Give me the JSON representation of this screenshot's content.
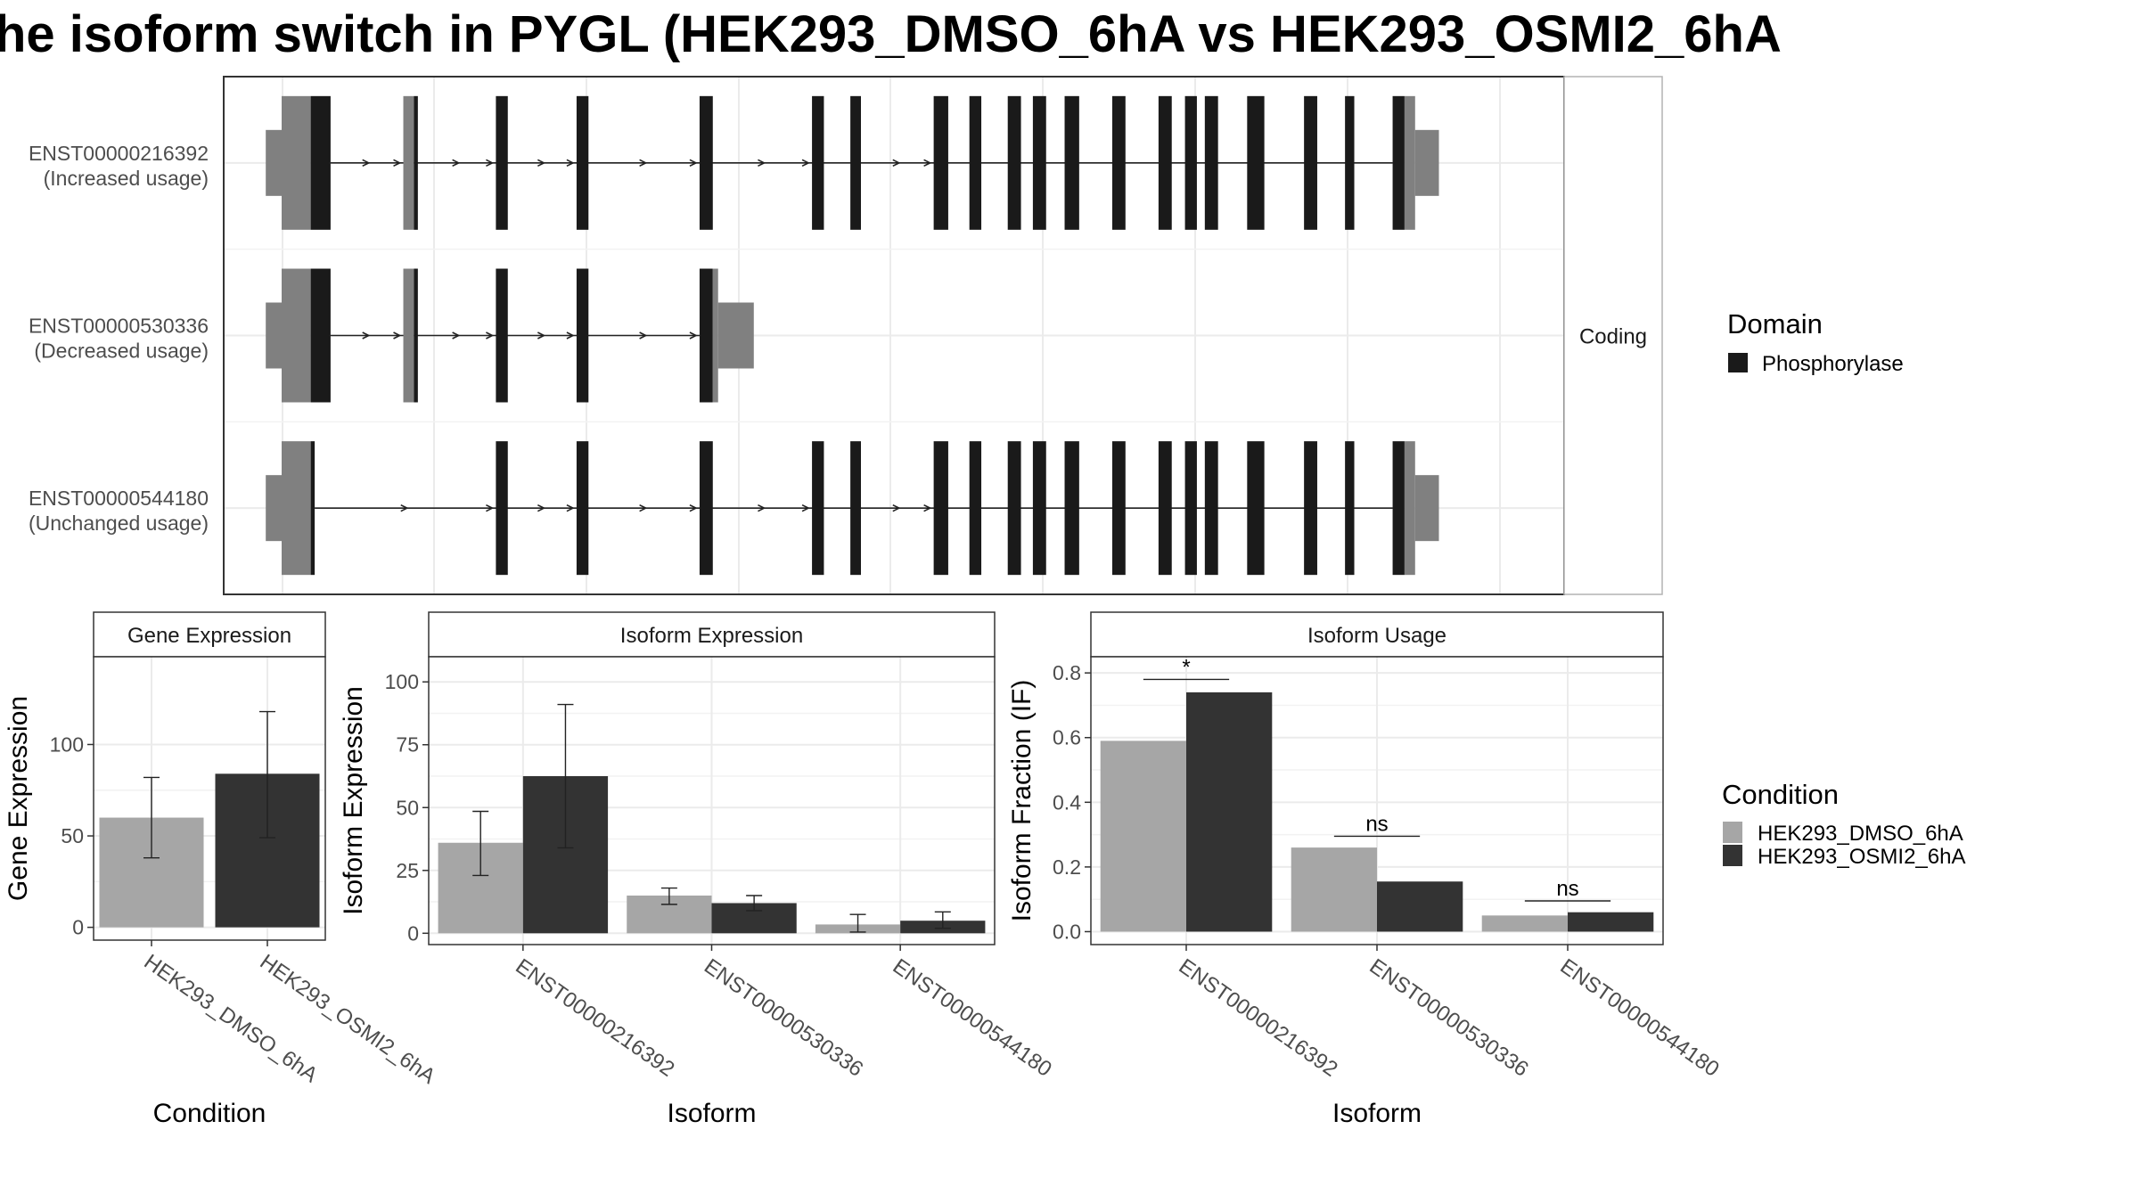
{
  "title": "he isoform switch in PYGL (HEK293_DMSO_6hA vs HEK293_OSMI2_6hA",
  "colors": {
    "dmso": "#a6a6a6",
    "osmi2": "#333333",
    "utr": "#808080",
    "domain": "#1a1a1a"
  },
  "structure": {
    "facet_label": "Coding",
    "transcripts": [
      {
        "id": "ENST00000216392",
        "usage": "(Increased usage)",
        "utr5": [
          [
            0.0,
            0.022
          ],
          [
            0.092,
            0.1
          ]
        ],
        "cds": [
          [
            0.022,
            0.037
          ],
          [
            0.1,
            0.103
          ],
          [
            0.162,
            0.171
          ],
          [
            0.223,
            0.232
          ],
          [
            0.316,
            0.326
          ],
          [
            0.401,
            0.41
          ],
          [
            0.43,
            0.438
          ],
          [
            0.493,
            0.504
          ],
          [
            0.52,
            0.529
          ],
          [
            0.549,
            0.559
          ],
          [
            0.568,
            0.578
          ],
          [
            0.592,
            0.603
          ],
          [
            0.628,
            0.638
          ],
          [
            0.663,
            0.673
          ],
          [
            0.683,
            0.692
          ],
          [
            0.698,
            0.708
          ],
          [
            0.73,
            0.743
          ],
          [
            0.773,
            0.783
          ],
          [
            0.804,
            0.811
          ],
          [
            0.84,
            0.849
          ]
        ],
        "utr3": [
          [
            0.849,
            0.857
          ]
        ],
        "utr3_tail": [
          0.857,
          0.875
        ],
        "intron": [
          0.037,
          0.84
        ]
      },
      {
        "id": "ENST00000530336",
        "usage": "(Decreased usage)",
        "utr5": [
          [
            0.0,
            0.022
          ],
          [
            0.092,
            0.1
          ]
        ],
        "cds": [
          [
            0.022,
            0.037
          ],
          [
            0.1,
            0.103
          ],
          [
            0.162,
            0.171
          ],
          [
            0.223,
            0.232
          ],
          [
            0.316,
            0.326
          ]
        ],
        "utr3": [
          [
            0.326,
            0.33
          ]
        ],
        "utr3_tail": [
          0.33,
          0.357
        ],
        "intron": [
          0.037,
          0.316
        ]
      },
      {
        "id": "ENST00000544180",
        "usage": "(Unchanged usage)",
        "utr5": [
          [
            0.0,
            0.022
          ]
        ],
        "cds": [
          [
            0.022,
            0.025
          ],
          [
            0.162,
            0.171
          ],
          [
            0.223,
            0.232
          ],
          [
            0.316,
            0.326
          ],
          [
            0.401,
            0.41
          ],
          [
            0.43,
            0.438
          ],
          [
            0.493,
            0.504
          ],
          [
            0.52,
            0.529
          ],
          [
            0.549,
            0.559
          ],
          [
            0.568,
            0.578
          ],
          [
            0.592,
            0.603
          ],
          [
            0.628,
            0.638
          ],
          [
            0.663,
            0.673
          ],
          [
            0.683,
            0.692
          ],
          [
            0.698,
            0.708
          ],
          [
            0.73,
            0.743
          ],
          [
            0.773,
            0.783
          ],
          [
            0.804,
            0.811
          ],
          [
            0.84,
            0.849
          ]
        ],
        "utr3": [
          [
            0.849,
            0.857
          ]
        ],
        "utr3_tail": [
          0.857,
          0.875
        ],
        "intron": [
          0.025,
          0.84
        ]
      }
    ]
  },
  "legend_domain": {
    "title": "Domain",
    "items": [
      "Phosphorylase"
    ]
  },
  "legend_condition": {
    "title": "Condition",
    "items": [
      "HEK293_DMSO_6hA",
      "HEK293_OSMI2_6hA"
    ]
  },
  "chart_data": [
    {
      "type": "bar",
      "title": "Gene Expression",
      "xlabel": "Condition",
      "ylabel": "Gene Expression",
      "categories": [
        "HEK293_DMSO_6hA",
        "HEK293_OSMI2_6hA"
      ],
      "values": [
        60,
        84
      ],
      "errors": [
        [
          38,
          82
        ],
        [
          49,
          118
        ]
      ],
      "ylim": [
        -7,
        148
      ],
      "yticks": [
        0,
        50,
        100
      ],
      "grid": true
    },
    {
      "type": "bar",
      "title": "Isoform Expression",
      "xlabel": "Isoform",
      "ylabel": "Isoform Expression",
      "categories": [
        "ENST00000216392",
        "ENST00000530336",
        "ENST00000544180"
      ],
      "series": [
        {
          "name": "HEK293_DMSO_6hA",
          "values": [
            36,
            15,
            3.5
          ],
          "errors": [
            [
              23,
              48.5
            ],
            [
              11.5,
              18
            ],
            [
              0.5,
              7.5
            ]
          ]
        },
        {
          "name": "HEK293_OSMI2_6hA",
          "values": [
            62.5,
            12,
            5
          ],
          "errors": [
            [
              34,
              91
            ],
            [
              9,
              15
            ],
            [
              2,
              8.5
            ]
          ]
        }
      ],
      "ylim": [
        -4.5,
        110
      ],
      "yticks": [
        0,
        25,
        50,
        75,
        100
      ],
      "grid": true
    },
    {
      "type": "bar",
      "title": "Isoform Usage",
      "xlabel": "Isoform",
      "ylabel": "Isoform Fraction (IF)",
      "categories": [
        "ENST00000216392",
        "ENST00000530336",
        "ENST00000544180"
      ],
      "series": [
        {
          "name": "HEK293_DMSO_6hA",
          "values": [
            0.59,
            0.26,
            0.05
          ]
        },
        {
          "name": "HEK293_OSMI2_6hA",
          "values": [
            0.74,
            0.155,
            0.06
          ]
        }
      ],
      "significance": [
        {
          "label": "*",
          "y": 0.78
        },
        {
          "label": "ns",
          "y": 0.295
        },
        {
          "label": "ns",
          "y": 0.095
        }
      ],
      "ylim": [
        -0.04,
        0.85
      ],
      "yticks": [
        0.0,
        0.2,
        0.4,
        0.6,
        0.8
      ],
      "grid": true
    }
  ]
}
